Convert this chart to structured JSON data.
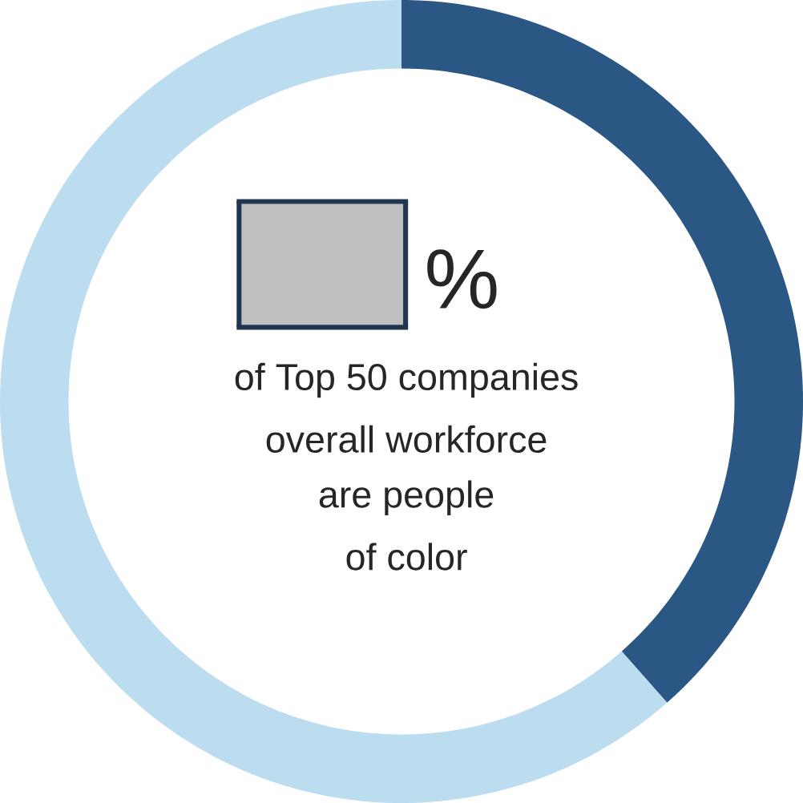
{
  "chart_data": {
    "type": "donut",
    "categories": [
      null,
      null
    ],
    "values": [
      38.5,
      61.5
    ],
    "colors": [
      "#2a5783",
      "#bcdcef"
    ],
    "annotations": [
      "%",
      "of Top 50 companies",
      "overall workforce",
      "are people",
      "of color"
    ]
  }
}
